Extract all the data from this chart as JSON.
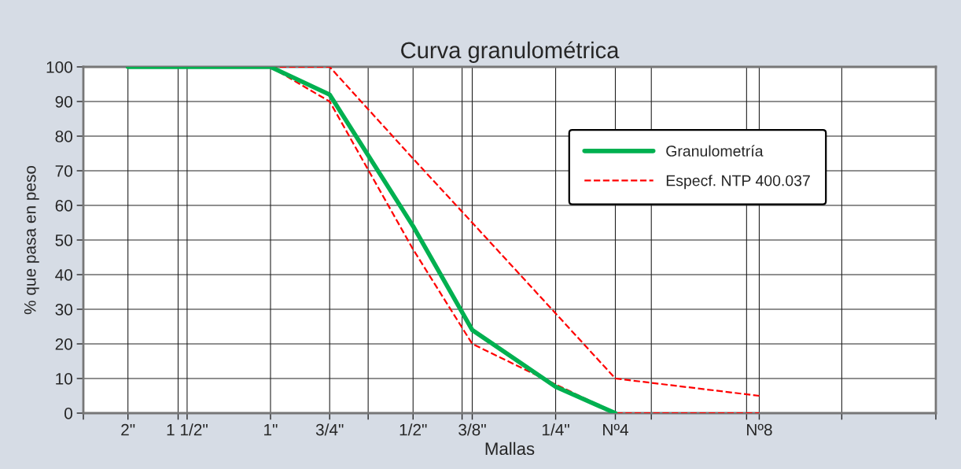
{
  "chart_data": {
    "type": "line",
    "title": "Curva granulométrica",
    "xlabel": "Mallas",
    "ylabel": "% que pasa en peso",
    "log": "x",
    "xlim": [
      2.484,
      0.03937
    ],
    "ylim": [
      0,
      100
    ],
    "yticks": [
      0,
      10,
      20,
      30,
      40,
      50,
      60,
      70,
      80,
      90,
      100
    ],
    "xticks": [
      {
        "value": 2,
        "label": "2\""
      },
      {
        "value": 1.5,
        "label": "1 1/2\""
      },
      {
        "value": 1,
        "label": "1\""
      },
      {
        "value": 0.75,
        "label": "3/4\""
      },
      {
        "value": 0.5,
        "label": "1/2\""
      },
      {
        "value": 0.375,
        "label": "3/8\""
      },
      {
        "value": 0.25,
        "label": "1/4\""
      },
      {
        "value": 0.187,
        "label": "Nº4"
      },
      {
        "value": 0.0929,
        "label": "Nº8"
      },
      {
        "value": 2.484,
        "label": null
      },
      {
        "value": 1.567,
        "label": null
      },
      {
        "value": 0.622,
        "label": null
      },
      {
        "value": 0.394,
        "label": null
      },
      {
        "value": 0.157,
        "label": null
      },
      {
        "value": 0.0988,
        "label": null
      },
      {
        "value": 0.0622,
        "label": null
      },
      {
        "value": 0.03937,
        "label": null
      }
    ],
    "grid": true,
    "legend": "top right",
    "series": [
      {
        "name": "Granulometría",
        "color": "#00b050",
        "line_style": "solid",
        "x": [
          2,
          1.5,
          1,
          0.75,
          0.5,
          0.375,
          0.25,
          0.187
        ],
        "values": [
          100,
          100,
          100,
          92,
          54,
          24,
          7.6,
          0
        ]
      },
      {
        "name": "Especf. NTP 400.037",
        "color": "#ff0000",
        "line_style": "dashed",
        "x": [
          1,
          0.75,
          0.5,
          0.375,
          0.25,
          0.187,
          0.0929
        ],
        "values": [
          100,
          100,
          73.5,
          55,
          28.8,
          10,
          5
        ]
      },
      {
        "color": "#ff0000",
        "line_style": "dashed",
        "x": [
          1,
          0.75,
          0.5,
          0.375,
          0.25,
          0.187,
          0.0929
        ],
        "values": [
          100,
          90,
          47.3,
          20,
          8.3,
          0,
          0
        ]
      }
    ]
  }
}
